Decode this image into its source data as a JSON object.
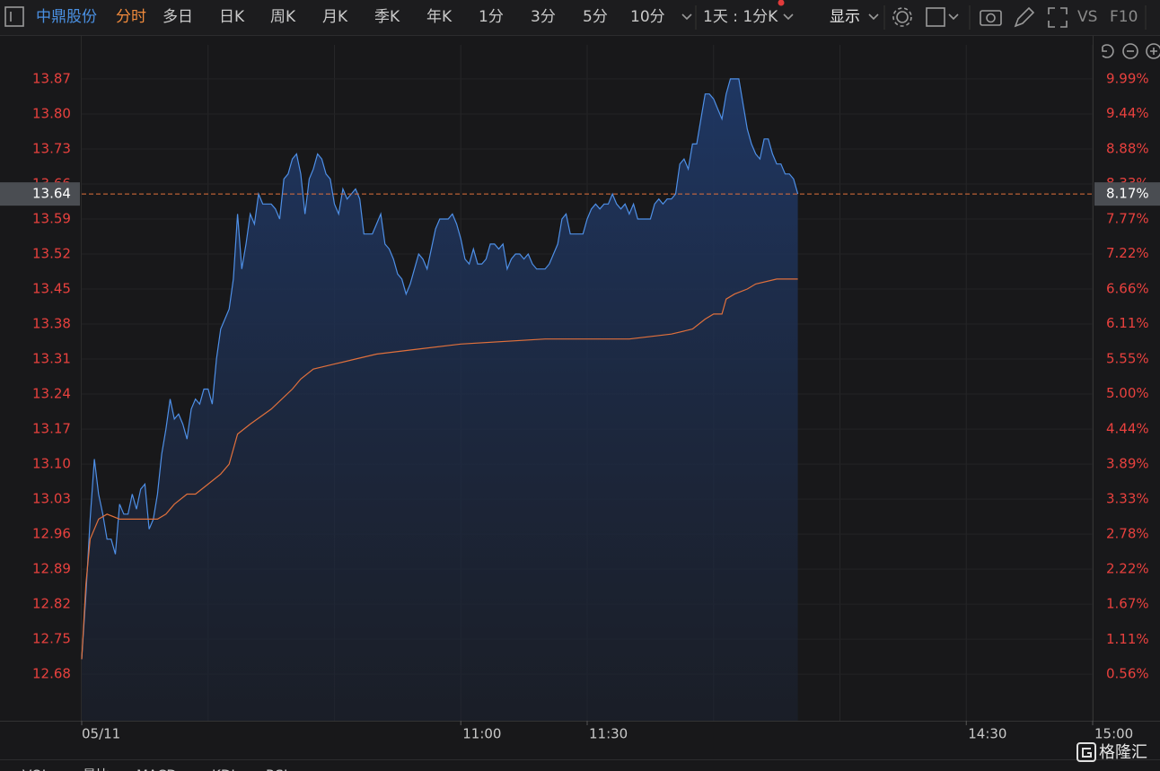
{
  "toolbar": {
    "stock": "中鼎股份",
    "tabs": [
      "分时",
      "多日",
      "日K",
      "周K",
      "月K",
      "季K",
      "年K",
      "1分",
      "3分",
      "5分",
      "10分"
    ],
    "range": "1天 : 1分K",
    "display": "显示",
    "vs": "VS",
    "f10": "F10"
  },
  "chart_data": {
    "type": "line",
    "xlim": [
      0,
      240
    ],
    "xticks": [
      {
        "value": 0,
        "label": "05/11"
      },
      {
        "value": 90,
        "label": "11:00"
      },
      {
        "value": 120,
        "label": "11:30"
      },
      {
        "value": 210,
        "label": "14:30"
      },
      {
        "value": 240,
        "label": "15:00"
      }
    ],
    "xgrid": [
      30,
      60,
      90,
      120,
      150,
      180,
      210,
      240
    ],
    "ylim": [
      12.587,
      13.956
    ],
    "yticks": [
      12.68,
      12.75,
      12.82,
      12.89,
      12.96,
      13.03,
      {
        "value": 13.1,
        "label": "13.10"
      },
      13.17,
      13.24,
      13.31,
      13.38,
      13.45,
      13.52,
      13.59,
      13.66,
      13.73,
      {
        "value": 13.8,
        "label": "13.80"
      },
      13.87
    ],
    "y2lim": [
      -0.18,
      10.67
    ],
    "y2ticks": [
      {
        "value": 0.56,
        "label": "0.56%"
      },
      {
        "value": 1.11,
        "label": "1.11%"
      },
      {
        "value": 1.67,
        "label": "1.67%"
      },
      {
        "value": 2.22,
        "label": "2.22%"
      },
      {
        "value": 2.78,
        "label": "2.78%"
      },
      {
        "value": 3.33,
        "label": "3.33%"
      },
      {
        "value": 3.89,
        "label": "3.89%"
      },
      {
        "value": 4.44,
        "label": "4.44%"
      },
      {
        "value": 5.0,
        "label": "5.00%"
      },
      {
        "value": 5.55,
        "label": "5.55%"
      },
      {
        "value": 6.11,
        "label": "6.11%"
      },
      {
        "value": 6.66,
        "label": "6.66%"
      },
      {
        "value": 7.22,
        "label": "7.22%"
      },
      {
        "value": 7.77,
        "label": "7.77%"
      },
      {
        "value": 8.33,
        "label": "8.33%"
      },
      {
        "value": 8.88,
        "label": "8.88%"
      },
      {
        "value": 9.44,
        "label": "9.44%"
      },
      {
        "value": 9.99,
        "label": "9.99%"
      }
    ],
    "current_price": 13.64,
    "current_change": {
      "value": 8.17,
      "label": "8.17%"
    },
    "series": [
      {
        "color": "#4e8fe6",
        "area": true,
        "x": [
          0,
          1,
          2,
          3,
          4,
          5,
          6,
          7,
          8,
          9,
          10,
          11,
          12,
          13,
          14,
          15,
          16,
          17,
          18,
          19,
          20,
          21,
          22,
          23,
          24,
          25,
          26,
          27,
          28,
          29,
          30,
          31,
          32,
          33,
          34,
          35,
          36,
          37,
          38,
          39,
          40,
          41,
          42,
          43,
          44,
          45,
          46,
          47,
          48,
          49,
          50,
          51,
          52,
          53,
          54,
          55,
          56,
          57,
          58,
          59,
          60,
          61,
          62,
          63,
          64,
          65,
          66,
          67,
          68,
          69,
          70,
          71,
          72,
          73,
          74,
          75,
          76,
          77,
          78,
          79,
          80,
          81,
          82,
          83,
          84,
          85,
          86,
          87,
          88,
          89,
          90,
          91,
          92,
          93,
          94,
          95,
          96,
          97,
          98,
          99,
          100,
          101,
          102,
          103,
          104,
          105,
          106,
          107,
          108,
          109,
          110,
          111,
          112,
          113,
          114,
          115,
          116,
          117,
          118,
          119,
          120,
          121,
          122,
          123,
          124,
          125,
          126,
          127,
          128,
          129,
          130,
          131,
          132,
          133,
          134,
          135,
          136,
          137,
          138,
          139,
          140,
          141,
          142,
          143,
          144,
          145,
          146,
          147,
          148,
          149,
          150,
          151,
          152,
          153,
          154,
          155,
          156,
          157,
          158,
          159,
          160,
          161,
          162,
          163,
          164,
          165,
          166,
          167,
          168,
          169,
          170
        ],
        "values": [
          12.71,
          12.84,
          12.99,
          13.11,
          13.04,
          13.0,
          12.95,
          12.95,
          12.92,
          13.02,
          13.0,
          13.0,
          13.04,
          13.01,
          13.05,
          13.06,
          12.97,
          12.99,
          13.04,
          13.12,
          13.17,
          13.23,
          13.19,
          13.2,
          13.18,
          13.15,
          13.21,
          13.23,
          13.22,
          13.25,
          13.25,
          13.22,
          13.31,
          13.37,
          13.39,
          13.41,
          13.47,
          13.6,
          13.49,
          13.54,
          13.6,
          13.58,
          13.64,
          13.62,
          13.62,
          13.62,
          13.61,
          13.59,
          13.67,
          13.68,
          13.71,
          13.72,
          13.68,
          13.6,
          13.67,
          13.69,
          13.72,
          13.71,
          13.68,
          13.67,
          13.62,
          13.6,
          13.65,
          13.63,
          13.64,
          13.65,
          13.63,
          13.56,
          13.56,
          13.56,
          13.58,
          13.6,
          13.54,
          13.53,
          13.51,
          13.48,
          13.47,
          13.44,
          13.46,
          13.49,
          13.52,
          13.51,
          13.49,
          13.53,
          13.57,
          13.59,
          13.59,
          13.59,
          13.6,
          13.58,
          13.55,
          13.51,
          13.5,
          13.53,
          13.5,
          13.5,
          13.51,
          13.54,
          13.54,
          13.53,
          13.54,
          13.49,
          13.51,
          13.52,
          13.52,
          13.51,
          13.52,
          13.5,
          13.49,
          13.49,
          13.49,
          13.5,
          13.52,
          13.54,
          13.59,
          13.6,
          13.56,
          13.56,
          13.56,
          13.56,
          13.59,
          13.61,
          13.62,
          13.61,
          13.62,
          13.62,
          13.64,
          13.62,
          13.61,
          13.62,
          13.6,
          13.62,
          13.59,
          13.59,
          13.59,
          13.59,
          13.62,
          13.63,
          13.62,
          13.63,
          13.63,
          13.64,
          13.7,
          13.71,
          13.69,
          13.74,
          13.74,
          13.79,
          13.84,
          13.84,
          13.83,
          13.81,
          13.79,
          13.84,
          13.87,
          13.87,
          13.87,
          13.82,
          13.77,
          13.74,
          13.72,
          13.71,
          13.75,
          13.75,
          13.72,
          13.7,
          13.7,
          13.68,
          13.68,
          13.67,
          13.64
        ]
      },
      {
        "color": "#e0703c",
        "area": false,
        "x": [
          0,
          1,
          2,
          4,
          6,
          9,
          12,
          15,
          18,
          20,
          22,
          25,
          27,
          30,
          33,
          35,
          36,
          37,
          40,
          45,
          50,
          52,
          55,
          60,
          65,
          70,
          80,
          90,
          110,
          120,
          130,
          140,
          145,
          148,
          150,
          152,
          153,
          155,
          158,
          160,
          165,
          170
        ],
        "values": [
          12.71,
          12.86,
          12.95,
          12.99,
          13.0,
          12.99,
          12.99,
          12.99,
          12.99,
          13.0,
          13.02,
          13.04,
          13.04,
          13.06,
          13.08,
          13.1,
          13.13,
          13.16,
          13.18,
          13.21,
          13.25,
          13.27,
          13.29,
          13.3,
          13.31,
          13.32,
          13.33,
          13.34,
          13.35,
          13.35,
          13.35,
          13.36,
          13.37,
          13.39,
          13.4,
          13.4,
          13.43,
          13.44,
          13.45,
          13.46,
          13.47,
          13.47
        ]
      }
    ]
  },
  "bottom_tabs": [
    "VOL",
    "量比",
    "MACD",
    "KDJ",
    "RSI"
  ],
  "watermark": "格隆汇"
}
